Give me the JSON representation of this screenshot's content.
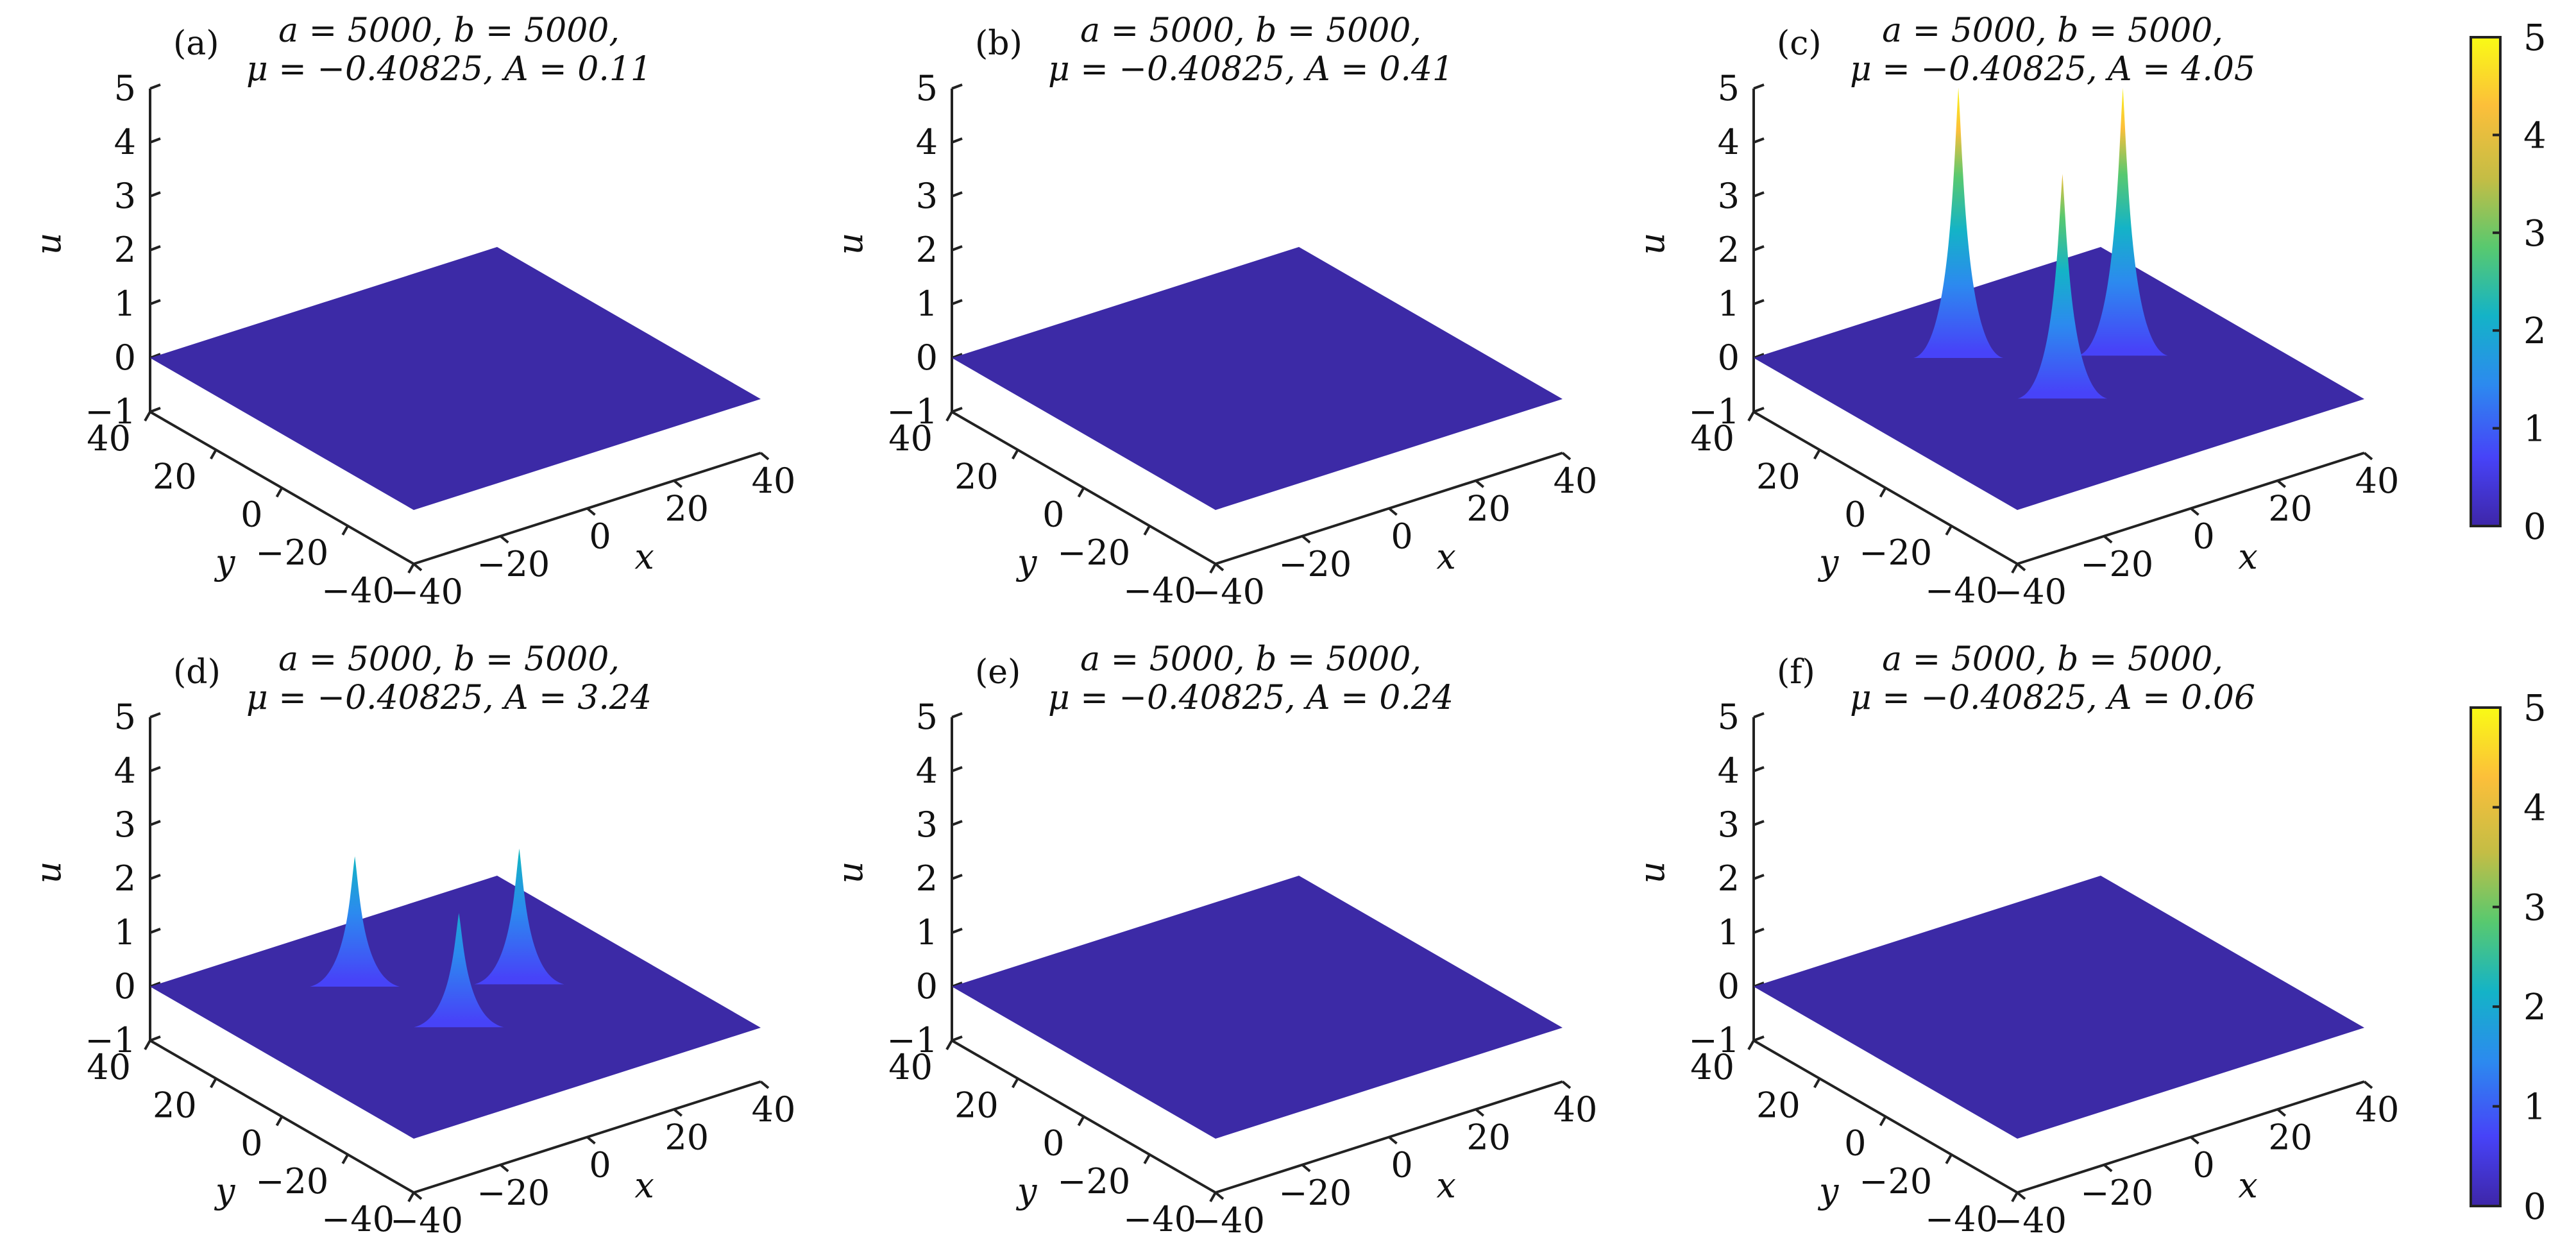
{
  "chart_data": [
    {
      "type": "surface",
      "panel": "(a)",
      "title_line1": "a = 5000,  b = 5000,",
      "title_line2": "μ = −0.40825,  A = 0.11",
      "xlabel": "x",
      "ylabel": "y",
      "zlabel": "u",
      "xlim": [
        -40,
        40
      ],
      "ylim": [
        -40,
        40
      ],
      "zlim": [
        -1,
        5
      ],
      "xticks": [
        "−40",
        "−20",
        "0",
        "20",
        "40"
      ],
      "yticks": [
        "−40",
        "−20",
        "0",
        "20",
        "40"
      ],
      "zticks": [
        "−1",
        "0",
        "1",
        "2",
        "3",
        "4",
        "5"
      ],
      "peaks": []
    },
    {
      "type": "surface",
      "panel": "(b)",
      "title_line1": "a = 5000,  b = 5000,",
      "title_line2": "μ = −0.40825,  A = 0.41",
      "xlabel": "x",
      "ylabel": "y",
      "zlabel": "u",
      "xlim": [
        -40,
        40
      ],
      "ylim": [
        -40,
        40
      ],
      "zlim": [
        -1,
        5
      ],
      "xticks": [
        "−40",
        "−20",
        "0",
        "20",
        "40"
      ],
      "yticks": [
        "−40",
        "−20",
        "0",
        "20",
        "40"
      ],
      "zticks": [
        "−1",
        "0",
        "1",
        "2",
        "3",
        "4",
        "5"
      ],
      "peaks": []
    },
    {
      "type": "surface",
      "panel": "(c)",
      "title_line1": "a = 5000,  b = 5000,",
      "title_line2": "μ = −0.40825,  A = 4.05",
      "xlabel": "x",
      "ylabel": "y",
      "zlabel": "u",
      "xlim": [
        -40,
        40
      ],
      "ylim": [
        -40,
        40
      ],
      "zlim": [
        -1,
        5
      ],
      "xticks": [
        "−40",
        "−20",
        "0",
        "20",
        "40"
      ],
      "yticks": [
        "−40",
        "−20",
        "0",
        "20",
        "40"
      ],
      "zticks": [
        "−1",
        "0",
        "1",
        "2",
        "3",
        "4",
        "5"
      ],
      "peaks": [
        {
          "x": -8,
          "y": 20,
          "u": 4.9
        },
        {
          "x": -3,
          "y": -5,
          "u": 4.05
        },
        {
          "x": 17,
          "y": 3,
          "u": 4.85
        }
      ]
    },
    {
      "type": "surface",
      "panel": "(d)",
      "title_line1": "a = 5000,  b = 5000,",
      "title_line2": "μ = −0.40825,  A = 3.24",
      "xlabel": "x",
      "ylabel": "y",
      "zlabel": "u",
      "xlim": [
        -40,
        40
      ],
      "ylim": [
        -40,
        40
      ],
      "zlim": [
        -1,
        5
      ],
      "xticks": [
        "−40",
        "−20",
        "0",
        "20",
        "40"
      ],
      "yticks": [
        "−40",
        "−20",
        "0",
        "20",
        "40"
      ],
      "zticks": [
        "−1",
        "0",
        "1",
        "2",
        "3",
        "4",
        "5"
      ],
      "peaks": [
        {
          "x": -8,
          "y": 20,
          "u": 2.3
        },
        {
          "x": -3,
          "y": -5,
          "u": 2.0
        },
        {
          "x": 17,
          "y": 3,
          "u": 2.4
        }
      ]
    },
    {
      "type": "surface",
      "panel": "(e)",
      "title_line1": "a = 5000,  b = 5000,",
      "title_line2": "μ = −0.40825,  A = 0.24",
      "xlabel": "x",
      "ylabel": "y",
      "zlabel": "u",
      "xlim": [
        -40,
        40
      ],
      "ylim": [
        -40,
        40
      ],
      "zlim": [
        -1,
        5
      ],
      "xticks": [
        "−40",
        "−20",
        "0",
        "20",
        "40"
      ],
      "yticks": [
        "−40",
        "−20",
        "0",
        "20",
        "40"
      ],
      "zticks": [
        "−1",
        "0",
        "1",
        "2",
        "3",
        "4",
        "5"
      ],
      "peaks": []
    },
    {
      "type": "surface",
      "panel": "(f)",
      "title_line1": "a = 5000,  b = 5000,",
      "title_line2": "μ = −0.40825,  A = 0.06",
      "xlabel": "x",
      "ylabel": "y",
      "zlabel": "u",
      "xlim": [
        -40,
        40
      ],
      "ylim": [
        -40,
        40
      ],
      "zlim": [
        -1,
        5
      ],
      "xticks": [
        "−40",
        "−20",
        "0",
        "20",
        "40"
      ],
      "yticks": [
        "−40",
        "−20",
        "0",
        "20",
        "40"
      ],
      "zticks": [
        "−1",
        "0",
        "1",
        "2",
        "3",
        "4",
        "5"
      ],
      "peaks": []
    }
  ],
  "colorbars": [
    {
      "ticks": [
        "0",
        "1",
        "2",
        "3",
        "4",
        "5"
      ],
      "range": [
        0,
        5
      ]
    },
    {
      "ticks": [
        "0",
        "1",
        "2",
        "3",
        "4",
        "5"
      ],
      "range": [
        0,
        5
      ]
    }
  ],
  "colormap": [
    "#3e26a8",
    "#4743f8",
    "#2c8aef",
    "#14b3c7",
    "#58c96f",
    "#c4bd45",
    "#fcbf3a",
    "#f9fb15"
  ],
  "surface_color": "#3c2aa6"
}
